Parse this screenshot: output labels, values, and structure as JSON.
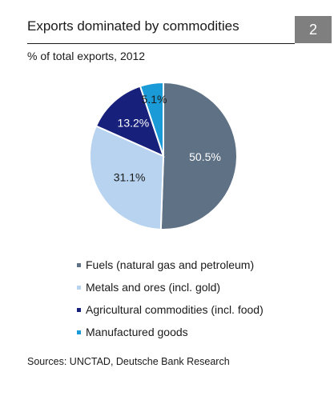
{
  "header": {
    "title": "Exports dominated by commodities",
    "badge": "2"
  },
  "source": "Sources: UNCTAD, Deutsche Bank Research",
  "chart_data": {
    "type": "pie",
    "subtitle": "% of total exports, 2012",
    "slices": [
      {
        "name": "Fuels (natural gas and petroleum)",
        "value": 50.5,
        "label": "50.5%",
        "color": "#5f7185",
        "label_color": "#ffffff"
      },
      {
        "name": "Metals and ores (incl. gold)",
        "value": 31.1,
        "label": "31.1%",
        "color": "#b8d3f0",
        "label_color": "#1a1a1a"
      },
      {
        "name": "Agricultural commodities (incl. food)",
        "value": 13.2,
        "label": "13.2%",
        "color": "#17207a",
        "label_color": "#ffffff"
      },
      {
        "name": "Manufactured goods",
        "value": 5.1,
        "label": "5.1%",
        "color": "#1a9ad6",
        "label_color": "#1a1a1a"
      }
    ],
    "start_angle": "12 o'clock",
    "direction": "clockwise",
    "legend_position": "bottom"
  }
}
